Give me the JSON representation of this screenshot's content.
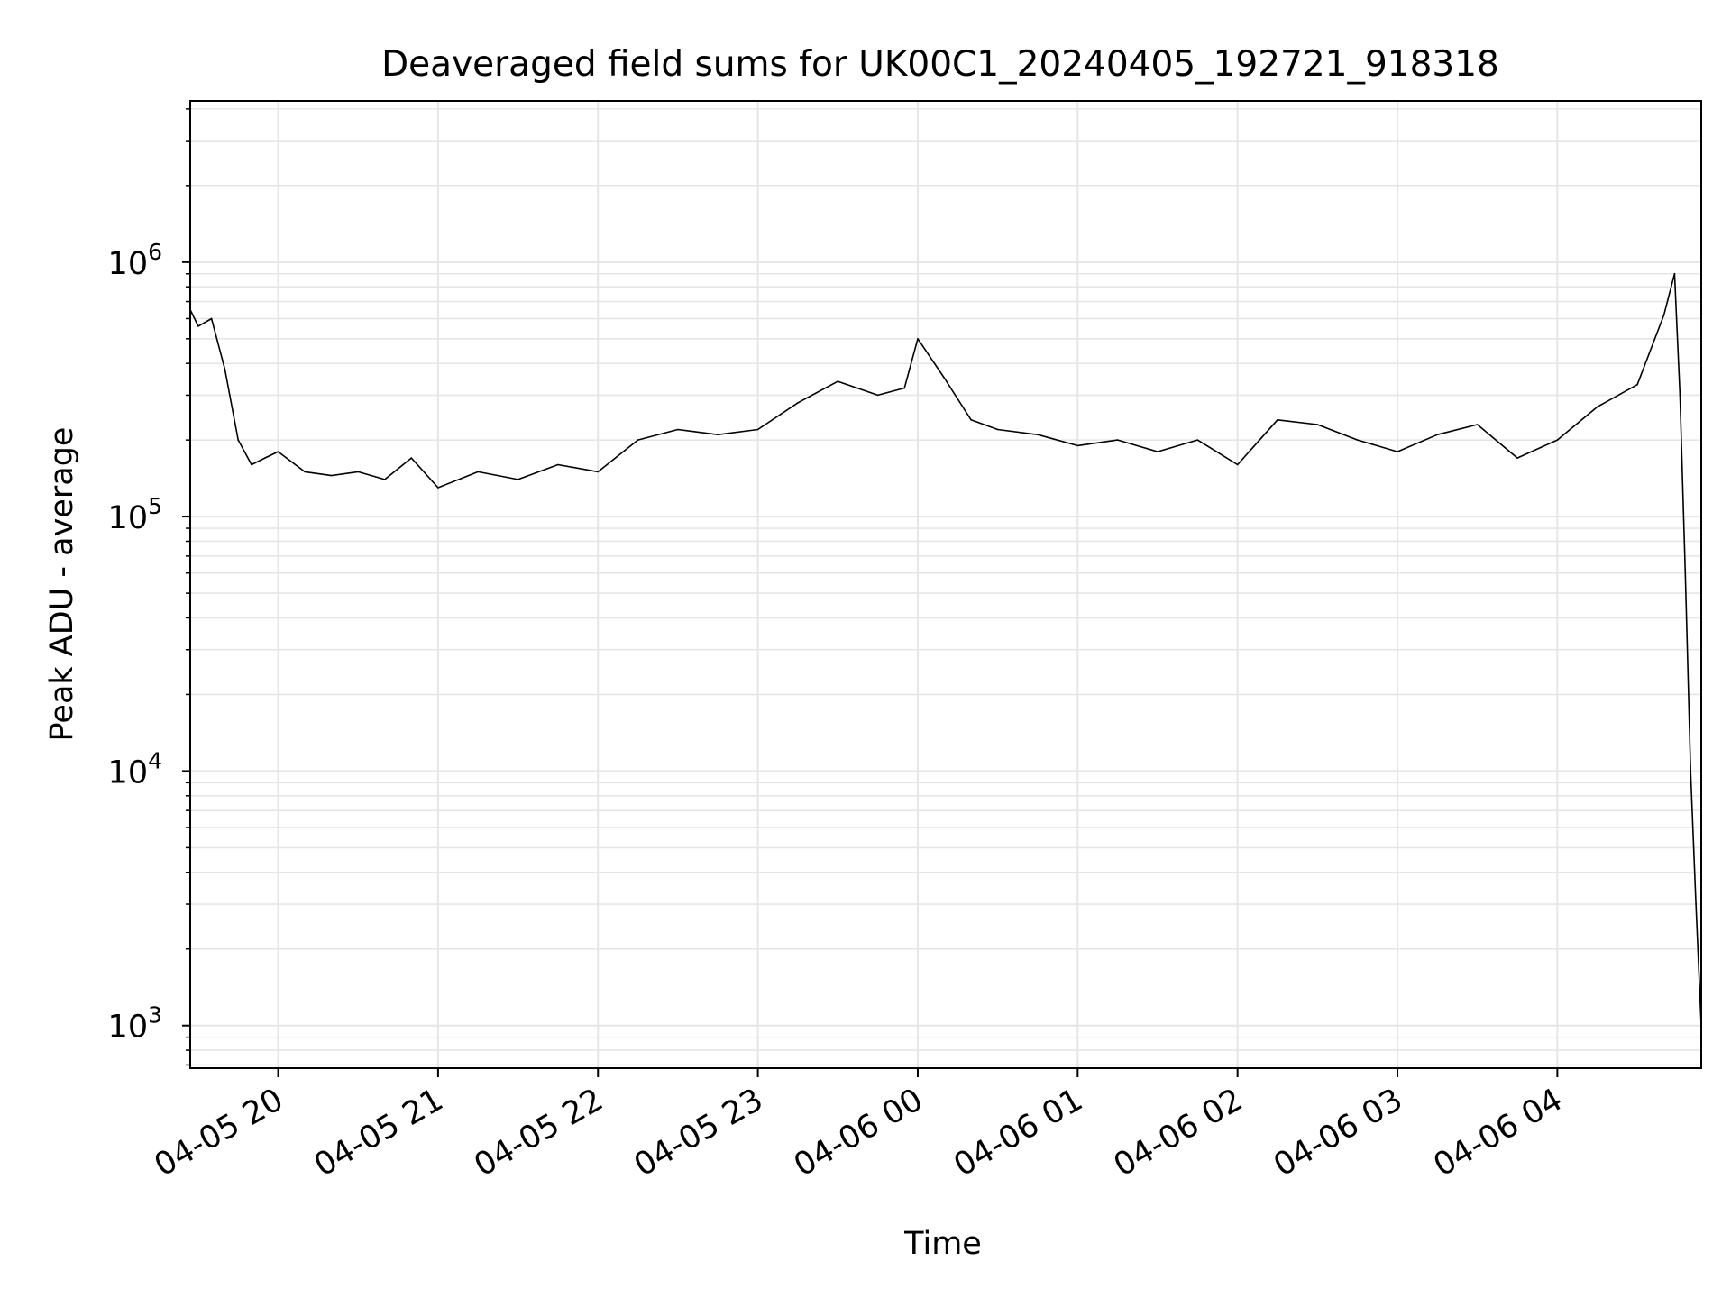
{
  "chart_data": {
    "type": "line",
    "title": "Deaveraged field sums for UK00C1_20240405_192721_918318",
    "xlabel": "Time",
    "ylabel": "Peak ADU - average",
    "x_tick_labels": [
      "04-05 20",
      "04-05 21",
      "04-05 22",
      "04-05 23",
      "04-06 00",
      "04-06 01",
      "04-06 02",
      "04-06 03",
      "04-06 04"
    ],
    "x_ticks": [
      "2024-04-05 20:00",
      "2024-04-05 21:00",
      "2024-04-05 22:00",
      "2024-04-05 23:00",
      "2024-04-06 00:00",
      "2024-04-06 01:00",
      "2024-04-06 02:00",
      "2024-04-06 03:00",
      "2024-04-06 04:00"
    ],
    "xlim": [
      "2024-04-05 19:27",
      "2024-04-06 04:54"
    ],
    "y_scale": "log",
    "y_tick_labels": [
      {
        "base": "10",
        "exp": "3",
        "value": 1000
      },
      {
        "base": "10",
        "exp": "4",
        "value": 10000
      },
      {
        "base": "10",
        "exp": "5",
        "value": 100000
      },
      {
        "base": "10",
        "exp": "6",
        "value": 1000000
      }
    ],
    "ylim": [
      680,
      4300000
    ],
    "grid": true,
    "line_color": "#000000",
    "grid_color": "#e6e6e6",
    "series": [
      {
        "x": [
          "2024-04-05 19:27",
          "2024-04-05 19:30",
          "2024-04-05 19:35",
          "2024-04-05 19:40",
          "2024-04-05 19:45",
          "2024-04-05 19:50",
          "2024-04-05 19:55",
          "2024-04-05 20:00",
          "2024-04-05 20:10",
          "2024-04-05 20:20",
          "2024-04-05 20:30",
          "2024-04-05 20:40",
          "2024-04-05 20:50",
          "2024-04-05 21:00",
          "2024-04-05 21:15",
          "2024-04-05 21:30",
          "2024-04-05 21:45",
          "2024-04-05 22:00",
          "2024-04-05 22:15",
          "2024-04-05 22:30",
          "2024-04-05 22:45",
          "2024-04-05 23:00",
          "2024-04-05 23:15",
          "2024-04-05 23:30",
          "2024-04-05 23:45",
          "2024-04-05 23:55",
          "2024-04-06 00:00",
          "2024-04-06 00:10",
          "2024-04-06 00:20",
          "2024-04-06 00:30",
          "2024-04-06 00:45",
          "2024-04-06 01:00",
          "2024-04-06 01:15",
          "2024-04-06 01:30",
          "2024-04-06 01:45",
          "2024-04-06 02:00",
          "2024-04-06 02:15",
          "2024-04-06 02:30",
          "2024-04-06 02:45",
          "2024-04-06 03:00",
          "2024-04-06 03:15",
          "2024-04-06 03:30",
          "2024-04-06 03:45",
          "2024-04-06 04:00",
          "2024-04-06 04:15",
          "2024-04-06 04:30",
          "2024-04-06 04:40",
          "2024-04-06 04:44",
          "2024-04-06 04:46",
          "2024-04-06 04:48",
          "2024-04-06 04:50",
          "2024-04-06 04:52",
          "2024-04-06 04:54"
        ],
        "y": [
          650000,
          560000,
          600000,
          380000,
          200000,
          160000,
          170000,
          180000,
          150000,
          145000,
          150000,
          140000,
          170000,
          130000,
          150000,
          140000,
          160000,
          150000,
          200000,
          220000,
          210000,
          220000,
          280000,
          340000,
          300000,
          320000,
          500000,
          350000,
          240000,
          220000,
          210000,
          190000,
          200000,
          180000,
          200000,
          160000,
          240000,
          230000,
          200000,
          180000,
          210000,
          230000,
          170000,
          200000,
          270000,
          330000,
          620000,
          900000,
          300000,
          60000,
          10000,
          3000,
          1000
        ]
      }
    ],
    "annotations": []
  }
}
